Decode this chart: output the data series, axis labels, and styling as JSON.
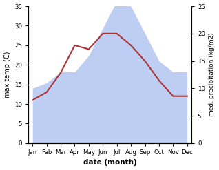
{
  "months": [
    "Jan",
    "Feb",
    "Mar",
    "Apr",
    "May",
    "Jun",
    "Jul",
    "Aug",
    "Sep",
    "Oct",
    "Nov",
    "Dec"
  ],
  "x": [
    0,
    1,
    2,
    3,
    4,
    5,
    6,
    7,
    8,
    9,
    10,
    11
  ],
  "temperature": [
    11,
    13,
    18,
    25,
    24,
    28,
    28,
    25,
    21,
    16,
    12,
    12
  ],
  "precipitation_right": [
    10,
    11,
    13,
    13,
    16,
    21,
    26,
    25,
    20,
    15,
    13,
    13
  ],
  "temp_ylim": [
    0,
    35
  ],
  "precip_ylim": [
    0,
    25
  ],
  "temp_yticks": [
    0,
    5,
    10,
    15,
    20,
    25,
    30,
    35
  ],
  "precip_yticks": [
    0,
    5,
    10,
    15,
    20,
    25
  ],
  "ylabel_left": "max temp (C)",
  "ylabel_right": "med. precipitation (kg/m2)",
  "xlabel": "date (month)",
  "fill_color": "#b3c6f0",
  "fill_alpha": 0.85,
  "line_color": "#aa3333",
  "line_width": 1.5,
  "bg_color": "#ffffff"
}
